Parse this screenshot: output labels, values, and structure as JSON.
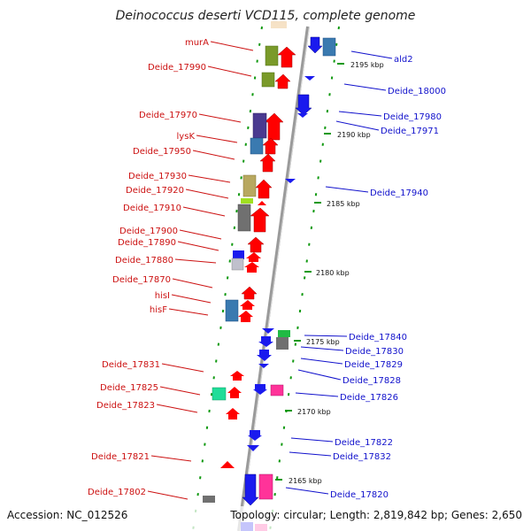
{
  "title": "Deinococcus deserti VCD115, complete genome",
  "footer": {
    "accession": "Accession: NC_012526",
    "topology": "Topology: circular; Length: 2,819,842 bp; Genes: 2,650"
  },
  "colors": {
    "forward_label": "#cc1111",
    "reverse_label": "#1111cc",
    "backbone": "#999999",
    "tick": "#119911"
  },
  "kbp_labels": [
    "2195 kbp",
    "2190 kbp",
    "2185 kbp",
    "2180 kbp",
    "2175 kbp",
    "2170 kbp",
    "2165 kbp"
  ],
  "left_labels": [
    "murA",
    "Deide_17990",
    "Deide_17970",
    "lysK",
    "Deide_17950",
    "Deide_17930",
    "Deide_17920",
    "Deide_17910",
    "Deide_17900",
    "Deide_17890",
    "Deide_17880",
    "Deide_17870",
    "hisI",
    "hisF",
    "Deide_17831",
    "Deide_17825",
    "Deide_17823",
    "Deide_17821",
    "Deide_17802"
  ],
  "right_labels": [
    "ald2",
    "Deide_18000",
    "Deide_17980",
    "Deide_17971",
    "Deide_17940",
    "Deide_17840",
    "Deide_17830",
    "Deide_17829",
    "Deide_17828",
    "Deide_17826",
    "Deide_17822",
    "Deide_17832",
    "Deide_17820"
  ]
}
